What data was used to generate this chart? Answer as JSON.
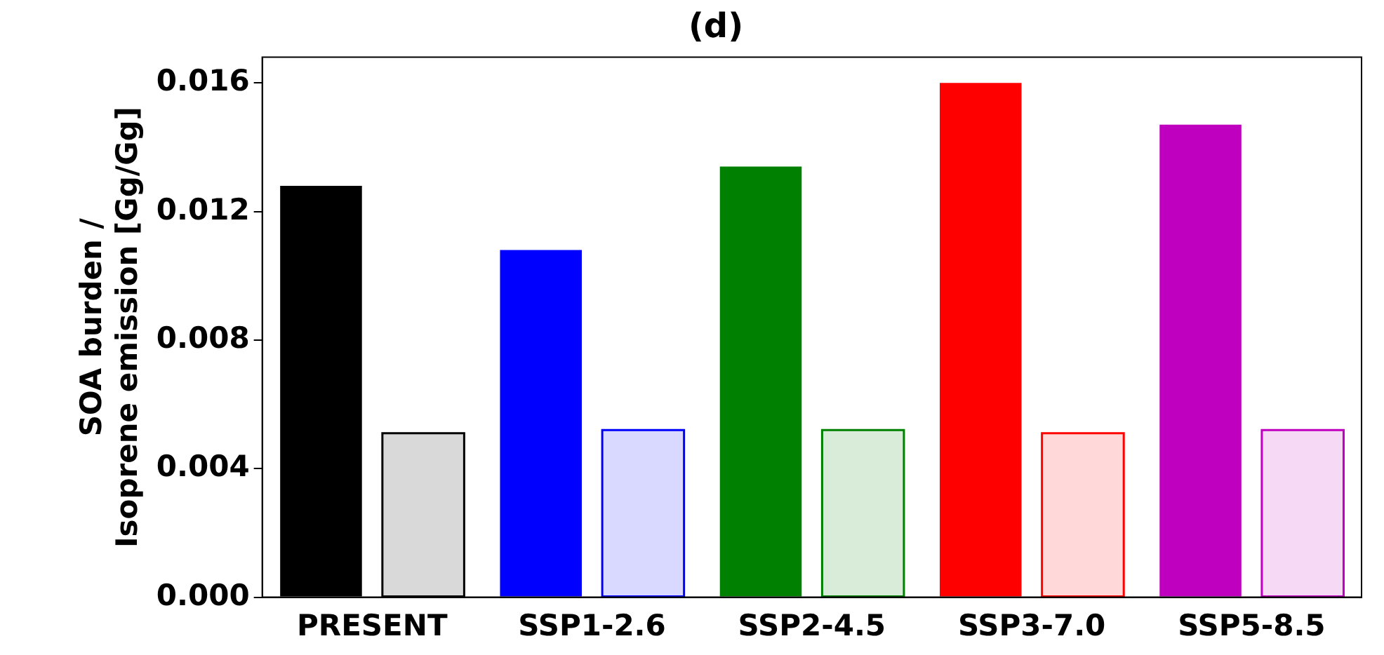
{
  "chart_data": {
    "type": "bar",
    "title": "(d)",
    "ylabel": "SOA burden /\nIsoprene emission [Gg/Gg]",
    "categories": [
      "PRESENT",
      "SSP1-2.6",
      "SSP2-4.5",
      "SSP3-7.0",
      "SSP5-8.5"
    ],
    "series": [
      {
        "colors": [
          "#000000",
          "#0000ff",
          "#008000",
          "#ff0000",
          "#bf00bf"
        ],
        "values": [
          0.0128,
          0.0108,
          0.0134,
          0.016,
          0.0147
        ]
      },
      {
        "colors": [
          "#000000",
          "#0000ff",
          "#008000",
          "#ff0000",
          "#bf00bf"
        ],
        "values": [
          0.0051,
          0.0052,
          0.0052,
          0.0051,
          0.0052
        ]
      }
    ],
    "ylim": [
      0,
      0.0168
    ],
    "yticks": [
      {
        "value": 0,
        "label": "0.000"
      },
      {
        "value": 0.004,
        "label": "0.004"
      },
      {
        "value": 0.008,
        "label": "0.008"
      },
      {
        "value": 0.012,
        "label": "0.012"
      },
      {
        "value": 0.016,
        "label": "0.016"
      }
    ],
    "grid": false,
    "legend": false
  }
}
